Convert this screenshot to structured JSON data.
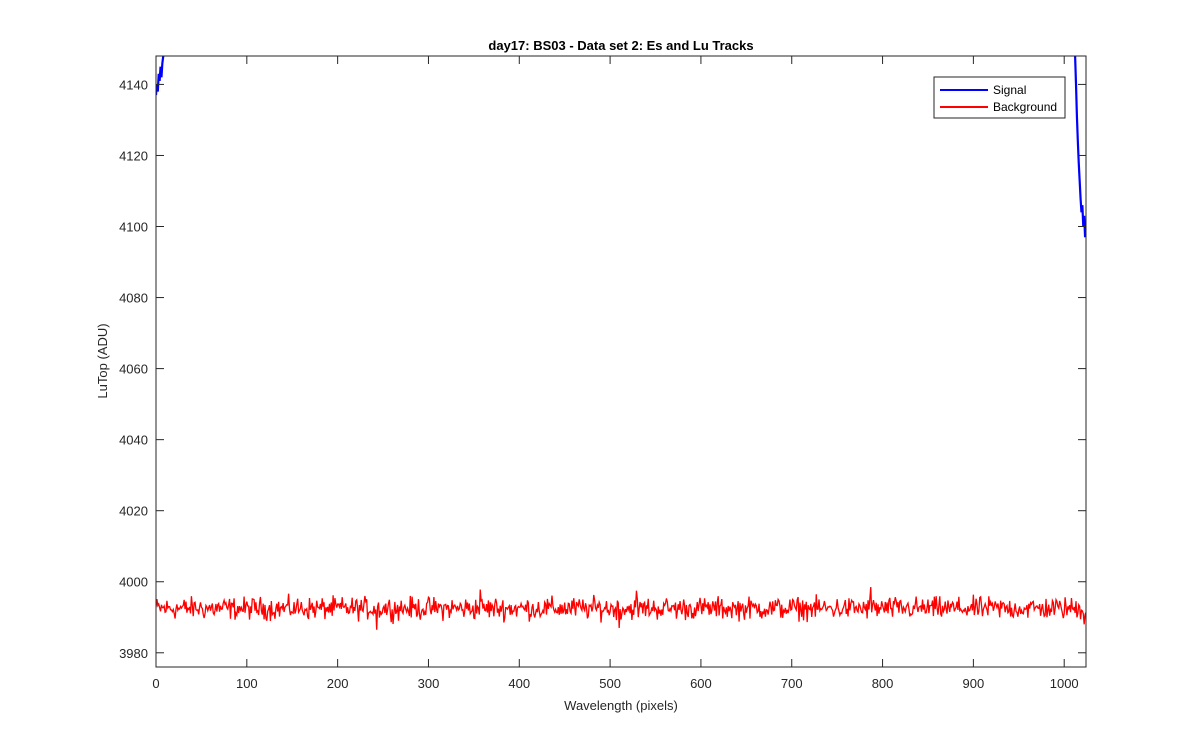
{
  "chart_data": {
    "type": "line",
    "title": "day17: BS03 - Data set 2: Es and Lu Tracks",
    "xlabel": "Wavelength (pixels)",
    "ylabel": "LuTop (ADU)",
    "xlim": [
      0,
      1024
    ],
    "ylim": [
      3976,
      4148
    ],
    "xticks": [
      0,
      100,
      200,
      300,
      400,
      500,
      600,
      700,
      800,
      900,
      1000
    ],
    "yticks": [
      3980,
      4000,
      4020,
      4040,
      4060,
      4080,
      4100,
      4120,
      4140
    ],
    "grid": false,
    "legend_position": "top-right",
    "series": [
      {
        "name": "Signal",
        "color": "#0000ff",
        "points": [
          [
            0,
            4137
          ],
          [
            1,
            4140
          ],
          [
            2,
            4138
          ],
          [
            3,
            4143
          ],
          [
            4,
            4141
          ],
          [
            5,
            4145
          ],
          [
            6,
            4142
          ],
          [
            7,
            4146
          ],
          [
            8,
            4148
          ],
          [
            1012,
            4148
          ],
          [
            1013,
            4140
          ],
          [
            1014,
            4131
          ],
          [
            1015,
            4124
          ],
          [
            1016,
            4118
          ],
          [
            1017,
            4113
          ],
          [
            1018,
            4108
          ],
          [
            1019,
            4104
          ],
          [
            1020,
            4106
          ],
          [
            1021,
            4100
          ],
          [
            1022,
            4103
          ],
          [
            1023,
            4097
          ],
          [
            1024,
            4098
          ]
        ]
      },
      {
        "name": "Background",
        "color": "#ff0000",
        "mean": 3992.5,
        "noise_amplitude": 2.2,
        "x_range": [
          0,
          1024
        ],
        "spikes": [
          [
            243,
            3986.5
          ],
          [
            510,
            3987
          ],
          [
            787,
            3998.5
          ],
          [
            529,
            3997.5
          ],
          [
            357,
            3997.8
          ],
          [
            1022,
            3988
          ]
        ]
      }
    ]
  }
}
